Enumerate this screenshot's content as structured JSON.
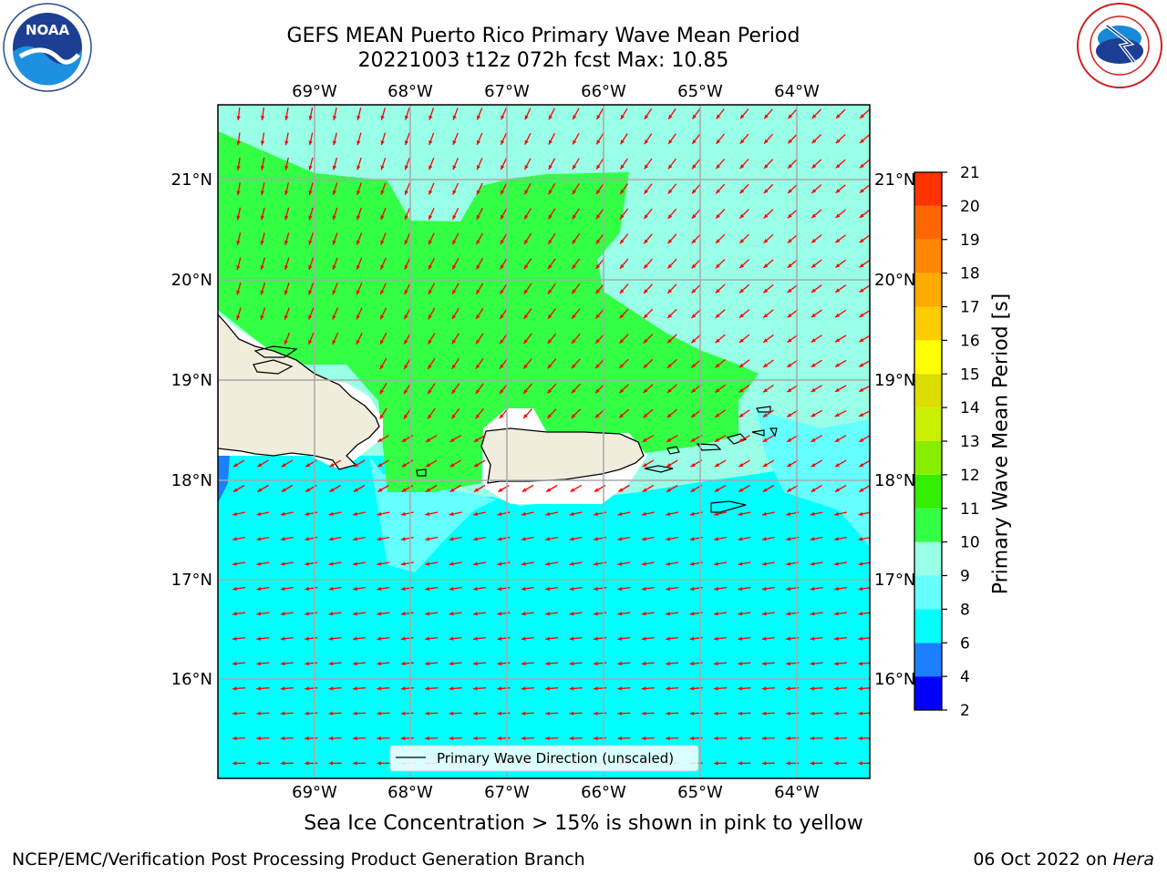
{
  "title": {
    "line1": "GEFS MEAN Puerto Rico Primary Wave Mean Period",
    "line2": "20221003 t12z 072h fcst   Max: 10.85"
  },
  "logos": {
    "left": {
      "name": "noaa-logo",
      "text": "NOAA",
      "ring_text": "NATIONAL OCEANIC AND ATMOSPHERIC ADMINISTRATION · U.S. DEPARTMENT OF COMMERCE"
    },
    "right": {
      "name": "nws-logo",
      "ring_text": "NATIONAL WEATHER SERVICE"
    }
  },
  "map": {
    "lon_labels": [
      "69°W",
      "68°W",
      "67°W",
      "66°W",
      "65°W",
      "64°W"
    ],
    "lat_labels": [
      "21°N",
      "20°N",
      "19°N",
      "18°N",
      "17°N",
      "16°N"
    ],
    "colors": {
      "land": "#f0eddc",
      "period_6_8": "#00ffff",
      "period_8_9": "#66ffff",
      "period_9_10": "#99ffe6",
      "period_10_11": "#33ff44",
      "period_4_6": "#1a80ff",
      "arrow": "#ff0000"
    },
    "legend": "Primary Wave Direction (unscaled)"
  },
  "colorbar": {
    "label": "Primary Wave Mean Period [s]",
    "ticks": [
      "2",
      "4",
      "6",
      "8",
      "9",
      "10",
      "11",
      "12",
      "13",
      "14",
      "15",
      "16",
      "17",
      "18",
      "19",
      "20",
      "21"
    ],
    "colors": [
      "#0000ff",
      "#1a80ff",
      "#00ffff",
      "#66ffff",
      "#99ffe6",
      "#33ff44",
      "#33ee00",
      "#88ee00",
      "#ccee00",
      "#dddd00",
      "#ffff00",
      "#ffcc00",
      "#ffaa00",
      "#ff8800",
      "#ff6600",
      "#ff3300",
      "#ff0000"
    ]
  },
  "subtitle": "Sea Ice Concentration > 15% is shown in pink to yellow",
  "footer": {
    "left": "NCEP/EMC/Verification Post Processing Product Generation Branch",
    "right_date": "06 Oct 2022 on ",
    "right_host": "Hera"
  }
}
